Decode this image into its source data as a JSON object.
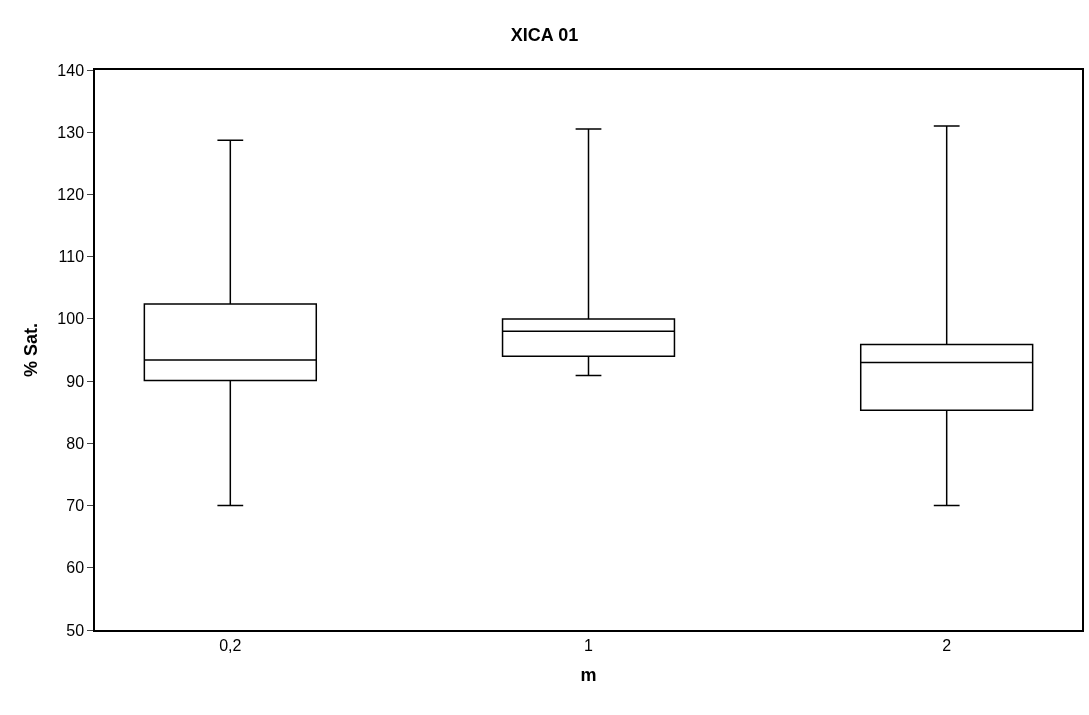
{
  "chart_data": {
    "type": "box",
    "title": "XICA 01",
    "xlabel": "m",
    "ylabel": "% Sat.",
    "categories": [
      "0,2",
      "1",
      "2"
    ],
    "boxes": [
      {
        "low": 70,
        "q1": 90.1,
        "median": 93.4,
        "q3": 102.4,
        "high": 128.7
      },
      {
        "low": 90.9,
        "q1": 94,
        "median": 98,
        "q3": 100,
        "high": 130.5
      },
      {
        "low": 70,
        "q1": 85.3,
        "median": 93,
        "q3": 95.9,
        "high": 131
      }
    ],
    "color": "#000000",
    "ylim": [
      50,
      140
    ],
    "yticks": [
      50,
      60,
      70,
      80,
      90,
      100,
      110,
      120,
      130,
      140
    ]
  }
}
